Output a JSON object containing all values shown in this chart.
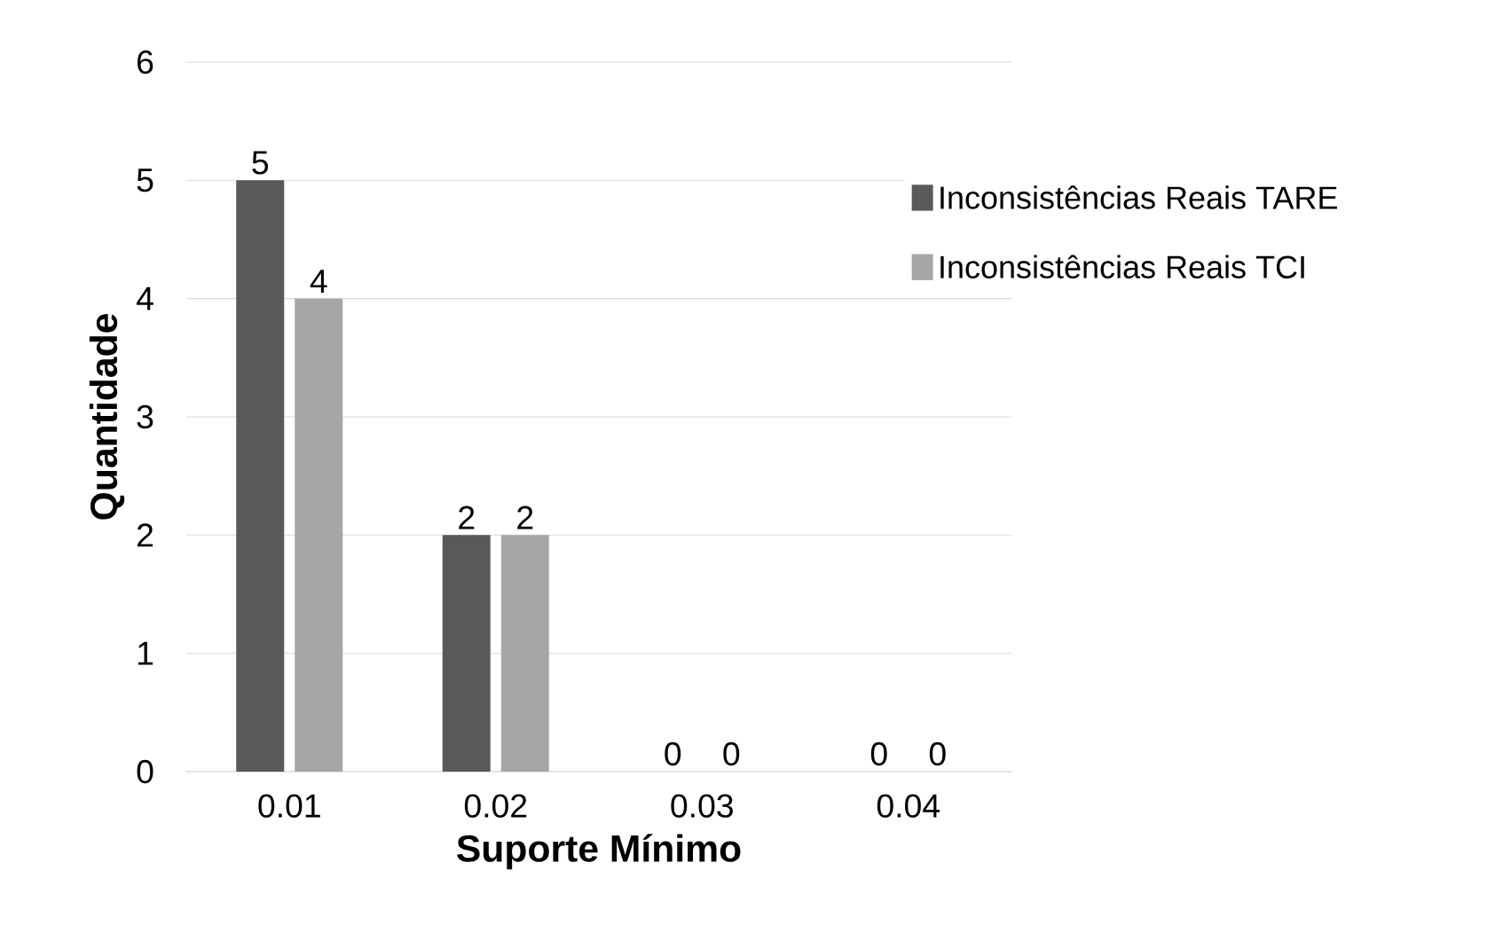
{
  "chart_data": {
    "type": "bar",
    "xlabel": "Suporte Mínimo",
    "ylabel": "Quantidade",
    "categories": [
      "0.01",
      "0.02",
      "0.03",
      "0.04"
    ],
    "series": [
      {
        "name": "Inconsistências Reais TARE",
        "color": "#595959",
        "values": [
          5,
          2,
          0,
          0
        ]
      },
      {
        "name": "Inconsistências Reais TCI",
        "color": "#a6a6a6",
        "values": [
          4,
          2,
          0,
          0
        ]
      }
    ],
    "ylim": [
      0,
      6
    ],
    "yticks": [
      0,
      1,
      2,
      3,
      4,
      5,
      6
    ],
    "grid": "y",
    "legend": "right",
    "data_labels": true
  }
}
